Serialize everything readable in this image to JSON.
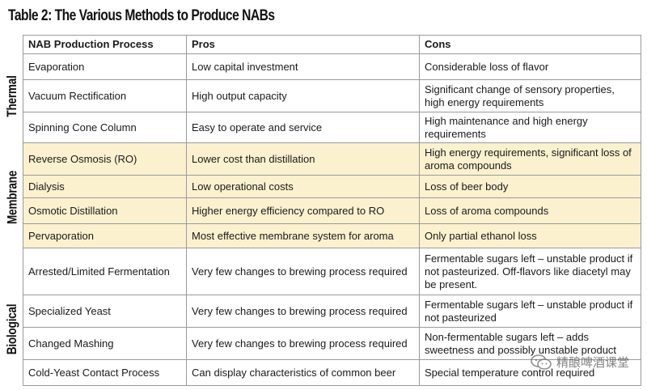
{
  "title": "Table 2: The Various Methods to Produce NABs",
  "headers": [
    "NAB Production Process",
    "Pros",
    "Cons"
  ],
  "groups": [
    {
      "label": "Thermal"
    },
    {
      "label": "Membrane"
    },
    {
      "label": "Biological"
    }
  ],
  "rows": [
    {
      "process": "Evaporation",
      "pros": "Low capital investment",
      "cons": "Considerable loss of flavor"
    },
    {
      "process": "Vacuum Rectification",
      "pros": "High output capacity",
      "cons": "Significant change of sensory properties, high energy requirements"
    },
    {
      "process": "Spinning Cone Column",
      "pros": "Easy to operate and service",
      "cons": "High maintenance and high energy requirements"
    },
    {
      "process": "Reverse Osmosis (RO)",
      "pros": "Lower cost than distillation",
      "cons": "High energy requirements, significant loss of aroma compounds"
    },
    {
      "process": "Dialysis",
      "pros": "Low operational costs",
      "cons": "Loss of beer body"
    },
    {
      "process": "Osmotic Distillation",
      "pros": "Higher energy efficiency compared to RO",
      "cons": "Loss of aroma compounds"
    },
    {
      "process": "Pervaporation",
      "pros": "Most effective membrane system for aroma",
      "cons": "Only partial ethanol loss"
    },
    {
      "process": "Arrested/Limited Fermentation",
      "pros": "Very few changes to brewing process required",
      "cons": "Fermentable sugars left – unstable product if not pasteurized. Off-flavors like diacetyl may be present."
    },
    {
      "process": "Specialized Yeast",
      "pros": "Very few changes to brewing process required",
      "cons": "Fermentable sugars left – unstable product if not pasteurized"
    },
    {
      "process": "Changed Mashing",
      "pros": "Very few changes to brewing process required",
      "cons": "Non-fermentable sugars left – adds sweetness and possibly unstable product"
    },
    {
      "process": "Cold-Yeast Contact Process",
      "pros": "Can display characteristics of common beer",
      "cons": "Special temperature control required"
    }
  ],
  "watermark": {
    "text": "精酿啤酒课堂",
    "icon": "wechat-icon"
  },
  "colors": {
    "membrane_highlight": "#fbf1cf",
    "border": "#9a9a9a"
  }
}
